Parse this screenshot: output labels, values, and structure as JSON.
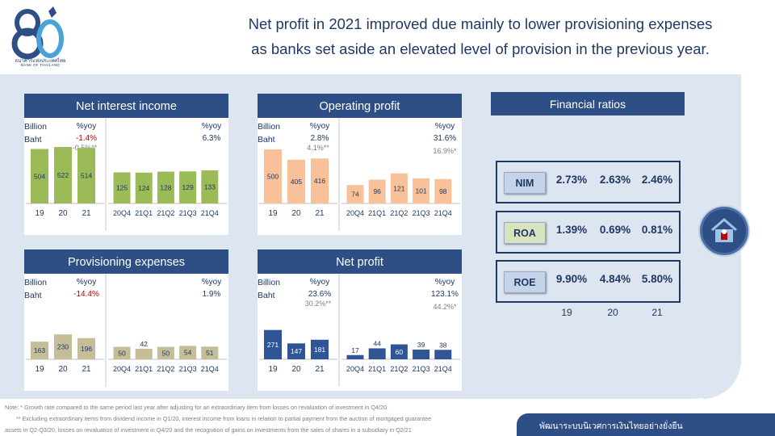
{
  "header": {
    "headline_line1": "Net profit in 2021 improved due mainly to lower provisioning expenses",
    "headline_line2": "as banks set aside an elevated level of provision in the previous year."
  },
  "logo": {
    "thai": "ธนาคารแห่งประเทศไทย",
    "english": "BANK OF THAILAND"
  },
  "colors": {
    "panel_bg": "#dde5f1",
    "title_bar": "#2e4e86",
    "text_dark": "#1f3864",
    "nii": "#9bbb59",
    "op": "#f8c19a",
    "prov": "#c4bd97",
    "np": "#2f5597",
    "negative": "#c00000"
  },
  "chart_data": [
    {
      "type": "bar",
      "title": "Net interest income",
      "unit_line1": "Billion",
      "unit_line2": "Baht",
      "annual": {
        "categories": [
          "19",
          "20",
          "21"
        ],
        "values": [
          504,
          522,
          514
        ],
        "yoy_header": "%yoy",
        "yoy": "-1.4%",
        "yoy_sub": "-0.5%**",
        "yoy_negative": true
      },
      "quarterly": {
        "categories": [
          "20Q4",
          "21Q1",
          "21Q2",
          "21Q3",
          "21Q4"
        ],
        "values": [
          125,
          124,
          128,
          129,
          133
        ],
        "yoy_header": "%yoy",
        "yoy": "6.3%",
        "yoy_sub": ""
      },
      "color": "#9bbb59"
    },
    {
      "type": "bar",
      "title": "Operating profit",
      "unit_line1": "Billion",
      "unit_line2": "Baht",
      "annual": {
        "categories": [
          "19",
          "20",
          "21"
        ],
        "values": [
          500,
          405,
          416
        ],
        "yoy_header": "%yoy",
        "yoy": "2.8%",
        "yoy_sub": "4.1%**",
        "yoy_negative": false
      },
      "quarterly": {
        "categories": [
          "20Q4",
          "21Q1",
          "21Q2",
          "21Q3",
          "21Q4"
        ],
        "values": [
          74,
          96,
          121,
          101,
          98
        ],
        "yoy_header": "%yoy",
        "yoy": "31.6%",
        "yoy_sub": "16.9%*"
      },
      "color": "#f8c19a"
    },
    {
      "type": "bar",
      "title": "Provisioning expenses",
      "unit_line1": "Billion",
      "unit_line2": "Baht",
      "annual": {
        "categories": [
          "19",
          "20",
          "21"
        ],
        "values": [
          163,
          230,
          196
        ],
        "yoy_header": "%yoy",
        "yoy": "-14.4%",
        "yoy_sub": "",
        "yoy_negative": true
      },
      "quarterly": {
        "categories": [
          "20Q4",
          "21Q1",
          "21Q2",
          "21Q3",
          "21Q4"
        ],
        "values": [
          50,
          42,
          50,
          54,
          51
        ],
        "yoy_header": "%yoy",
        "yoy": "1.9%",
        "yoy_sub": ""
      },
      "color": "#c4bd97"
    },
    {
      "type": "bar",
      "title": "Net profit",
      "unit_line1": "Billion",
      "unit_line2": "Baht",
      "annual": {
        "categories": [
          "19",
          "20",
          "21"
        ],
        "values": [
          271,
          147,
          181
        ],
        "yoy_header": "%yoy",
        "yoy": "23.6%",
        "yoy_sub": "30.2%**",
        "yoy_negative": false
      },
      "quarterly": {
        "categories": [
          "20Q4",
          "21Q1",
          "21Q2",
          "21Q3",
          "21Q4"
        ],
        "values": [
          17,
          44,
          60,
          39,
          38
        ],
        "yoy_header": "%yoy",
        "yoy": "123.1%",
        "yoy_sub": "44.2%*"
      },
      "color": "#2f5597"
    },
    {
      "type": "table",
      "title": "Financial ratios",
      "columns": [
        "19",
        "20",
        "21"
      ],
      "rows": [
        {
          "label": "NIM",
          "values": [
            "2.73%",
            "2.63%",
            "2.46%"
          ],
          "color": "#c5d3ea"
        },
        {
          "label": "ROA",
          "values": [
            "1.39%",
            "0.69%",
            "0.81%"
          ],
          "color": "#d7e4bd"
        },
        {
          "label": "ROE",
          "values": [
            "9.90%",
            "4.84%",
            "5.80%"
          ],
          "color": "#c5d3ea"
        }
      ]
    }
  ],
  "notes": {
    "note1": "Note: * Growth rate compared to the same period last year after adjusting for an extraordinary item from losses on revaluation of investment in Q4/20.",
    "note2": "** Excluding extraordinary items from dividend income in Q1/20, interest income from loans in relation to partial payment from the auction of mortgaged guarantee",
    "note3": "assets in Q2-Q3/20, losses on revaluation of investment in Q4/20 and the recognition of gains on investments from the sales of shares in a subsidiary in Q2/21"
  },
  "footer": {
    "text": "พัฒนาระบบนิเวศการเงินไทยอย่างยั่งยืน"
  },
  "icons": {
    "side_button": "bank-house-icon",
    "logo": "bot-80-logo"
  }
}
